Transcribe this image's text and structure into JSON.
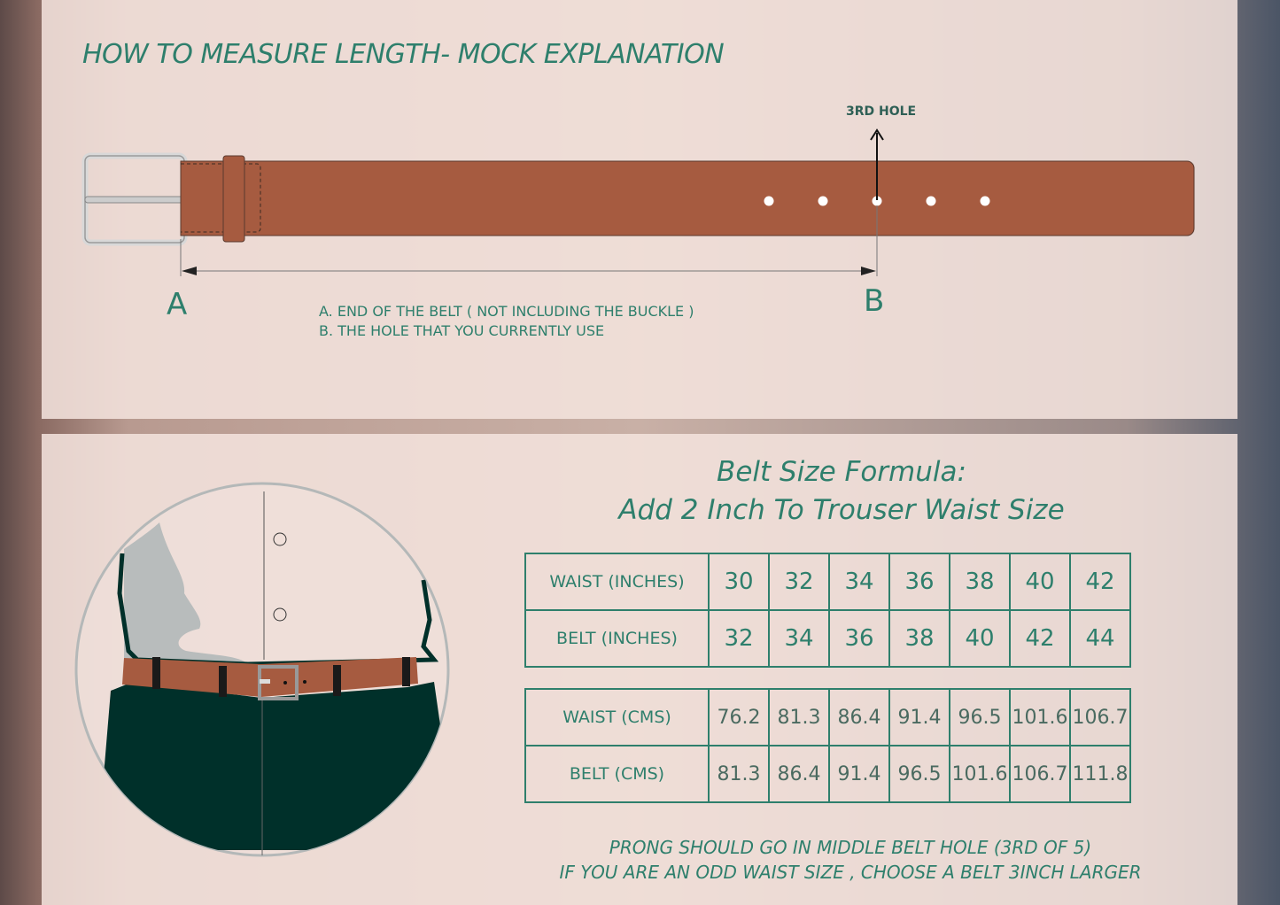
{
  "header": {
    "title": "HOW TO MEASURE LENGTH- MOCK EXPLANATION"
  },
  "diagram": {
    "hole_label": "3RD HOLE",
    "point_a": "A",
    "point_b": "B",
    "notes": [
      "A. END OF THE BELT ( NOT INCLUDING THE BUCKLE )",
      "B. THE HOLE THAT YOU CURRENTLY USE"
    ],
    "hole_count": 5,
    "selected_hole": 3
  },
  "formula": {
    "line1": "Belt Size Formula:",
    "line2": "Add  2 Inch To Trouser Waist Size"
  },
  "inches_table": {
    "rows": [
      {
        "label": "WAIST (INCHES)",
        "values": [
          "30",
          "32",
          "34",
          "36",
          "38",
          "40",
          "42"
        ]
      },
      {
        "label": "BELT (INCHES)",
        "values": [
          "32",
          "34",
          "36",
          "38",
          "40",
          "42",
          "44"
        ]
      }
    ]
  },
  "cms_table": {
    "rows": [
      {
        "label": "WAIST (CMS)",
        "values": [
          "76.2",
          "81.3",
          "86.4",
          "91.4",
          "96.5",
          "101.6",
          "106.7"
        ]
      },
      {
        "label": "BELT (CMS)",
        "values": [
          "81.3",
          "86.4",
          "91.4",
          "96.5",
          "101.6",
          "106.7",
          "111.8"
        ]
      }
    ]
  },
  "footer": {
    "line1": "PRONG SHOULD GO IN MIDDLE BELT HOLE (3RD OF 5)",
    "line2": "IF YOU ARE AN ODD WAIST SIZE , CHOOSE A BELT 3INCH LARGER"
  },
  "colors": {
    "accent": "#2e7f6c",
    "belt": "#a65b40",
    "trousers": "#00302a"
  }
}
